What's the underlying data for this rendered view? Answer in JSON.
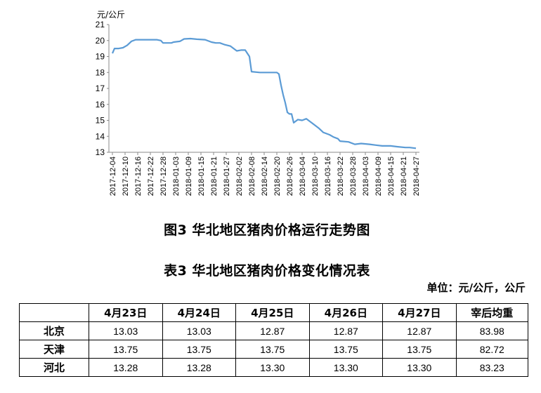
{
  "chart_data": {
    "type": "line",
    "title": "图3 华北地区猪肉价格运行走势图",
    "ylabel": "元/公斤",
    "xlabel": "",
    "ylim": [
      13,
      21
    ],
    "yticks": [
      13,
      14,
      15,
      16,
      17,
      18,
      19,
      20,
      21
    ],
    "line_color": "#5b9bd5",
    "grid": false,
    "x_tick_labels": [
      "2017-12-04",
      "2017-12-10",
      "2017-12-16",
      "2017-12-22",
      "2017-12-28",
      "2018-01-03",
      "2018-01-09",
      "2018-01-15",
      "2018-01-21",
      "2018-01-27",
      "2018-02-02",
      "2018-02-08",
      "2018-02-14",
      "2018-02-20",
      "2018-02-26",
      "2018-03-04",
      "2018-03-10",
      "2018-03-16",
      "2018-03-22",
      "2018-03-28",
      "2018-04-03",
      "2018-04-09",
      "2018-04-15",
      "2018-04-21",
      "2018-04-27"
    ],
    "series": [
      {
        "name": "",
        "points": [
          [
            "2017-12-04",
            19.2
          ],
          [
            "2017-12-05",
            19.5
          ],
          [
            "2017-12-07",
            19.5
          ],
          [
            "2017-12-09",
            19.55
          ],
          [
            "2017-12-11",
            19.7
          ],
          [
            "2017-12-13",
            19.95
          ],
          [
            "2017-12-15",
            20.05
          ],
          [
            "2017-12-18",
            20.05
          ],
          [
            "2017-12-21",
            20.05
          ],
          [
            "2017-12-25",
            20.05
          ],
          [
            "2017-12-27",
            20.0
          ],
          [
            "2017-12-28",
            19.85
          ],
          [
            "2018-01-01",
            19.85
          ],
          [
            "2018-01-02",
            19.9
          ],
          [
            "2018-01-05",
            19.95
          ],
          [
            "2018-01-07",
            20.1
          ],
          [
            "2018-01-10",
            20.12
          ],
          [
            "2018-01-13",
            20.08
          ],
          [
            "2018-01-17",
            20.05
          ],
          [
            "2018-01-20",
            19.9
          ],
          [
            "2018-01-22",
            19.85
          ],
          [
            "2018-01-24",
            19.85
          ],
          [
            "2018-01-26",
            19.75
          ],
          [
            "2018-01-29",
            19.65
          ],
          [
            "2018-02-01",
            19.35
          ],
          [
            "2018-02-03",
            19.4
          ],
          [
            "2018-02-05",
            19.4
          ],
          [
            "2018-02-07",
            19.0
          ],
          [
            "2018-02-08",
            18.05
          ],
          [
            "2018-02-12",
            18.0
          ],
          [
            "2018-02-16",
            18.0
          ],
          [
            "2018-02-20",
            18.0
          ],
          [
            "2018-02-21",
            17.9
          ],
          [
            "2018-02-22",
            17.2
          ],
          [
            "2018-02-23",
            16.6
          ],
          [
            "2018-02-24",
            16.1
          ],
          [
            "2018-02-25",
            15.5
          ],
          [
            "2018-02-26",
            15.4
          ],
          [
            "2018-02-27",
            15.4
          ],
          [
            "2018-02-28",
            14.85
          ],
          [
            "2018-03-02",
            15.05
          ],
          [
            "2018-03-04",
            15.0
          ],
          [
            "2018-03-06",
            15.1
          ],
          [
            "2018-03-09",
            14.8
          ],
          [
            "2018-03-12",
            14.5
          ],
          [
            "2018-03-14",
            14.25
          ],
          [
            "2018-03-17",
            14.1
          ],
          [
            "2018-03-19",
            13.95
          ],
          [
            "2018-03-21",
            13.85
          ],
          [
            "2018-03-22",
            13.7
          ],
          [
            "2018-03-26",
            13.65
          ],
          [
            "2018-03-29",
            13.5
          ],
          [
            "2018-04-01",
            13.55
          ],
          [
            "2018-04-05",
            13.5
          ],
          [
            "2018-04-08",
            13.45
          ],
          [
            "2018-04-11",
            13.4
          ],
          [
            "2018-04-15",
            13.4
          ],
          [
            "2018-04-18",
            13.35
          ],
          [
            "2018-04-22",
            13.3
          ],
          [
            "2018-04-24",
            13.3
          ],
          [
            "2018-04-27",
            13.25
          ]
        ]
      }
    ]
  },
  "figure_caption": "图3 华北地区猪肉价格运行走势图",
  "table_caption": "表3 华北地区猪肉价格变化情况表",
  "unit_note": "单位：元/公斤，公斤",
  "table": {
    "headers": [
      "",
      "4月23日",
      "4月24日",
      "4月25日",
      "4月26日",
      "4月27日",
      "宰后均重"
    ],
    "rows": [
      {
        "region": "北京",
        "values": [
          "13.03",
          "13.03",
          "12.87",
          "12.87",
          "12.87",
          "83.98"
        ]
      },
      {
        "region": "天津",
        "values": [
          "13.75",
          "13.75",
          "13.75",
          "13.75",
          "13.75",
          "82.72"
        ]
      },
      {
        "region": "河北",
        "values": [
          "13.28",
          "13.28",
          "13.30",
          "13.30",
          "13.30",
          "83.23"
        ]
      }
    ]
  }
}
